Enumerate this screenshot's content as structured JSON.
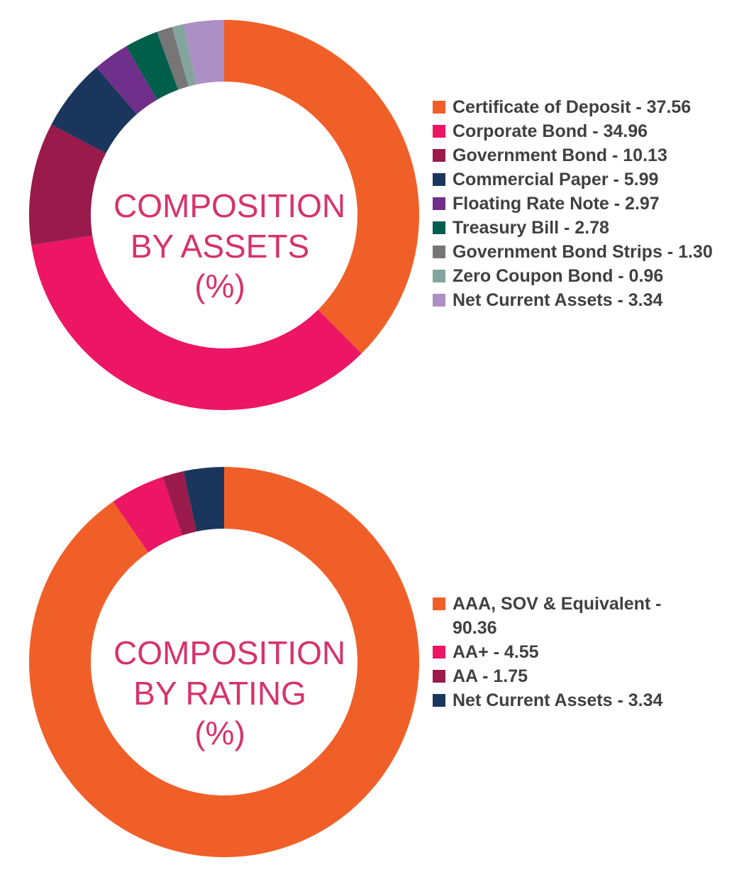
{
  "chart_data": [
    {
      "type": "pie",
      "title": "",
      "center_label": [
        "COMPOSITION",
        "BY ASSETS",
        "(%)"
      ],
      "legend_position": "right",
      "series": [
        {
          "label": "Certificate of Deposit - 37.56",
          "value": 37.56,
          "color": "#F15F29"
        },
        {
          "label": "Corporate Bond - 34.96",
          "value": 34.96,
          "color": "#EC1664"
        },
        {
          "label": "Government Bond - 10.13",
          "value": 10.13,
          "color": "#9A1B4B"
        },
        {
          "label": "Commercial Paper - 5.99",
          "value": 5.99,
          "color": "#1B365D"
        },
        {
          "label": "Floating Rate Note - 2.97",
          "value": 2.97,
          "color": "#702F8A"
        },
        {
          "label": "Treasury Bill - 2.78",
          "value": 2.78,
          "color": "#005F4B"
        },
        {
          "label": "Government Bond Strips - 1.30",
          "value": 1.3,
          "color": "#767676"
        },
        {
          "label": "Zero Coupon Bond - 0.96",
          "value": 0.96,
          "color": "#84A59D"
        },
        {
          "label": "Net Current Assets - 3.34",
          "value": 3.34,
          "color": "#AC8FC4"
        }
      ]
    },
    {
      "type": "pie",
      "title": "",
      "center_label": [
        "COMPOSITION",
        "BY RATING",
        "(%)"
      ],
      "legend_position": "right",
      "series": [
        {
          "label": "AAA, SOV & Equivalent - 90.36",
          "value": 90.36,
          "color": "#F15F29"
        },
        {
          "label": "AA+ - 4.55",
          "value": 4.55,
          "color": "#EC1664"
        },
        {
          "label": "AA - 1.75",
          "value": 1.75,
          "color": "#9A1B4B"
        },
        {
          "label": "Net Current Assets - 3.34",
          "value": 3.34,
          "color": "#1B365D"
        }
      ]
    }
  ]
}
